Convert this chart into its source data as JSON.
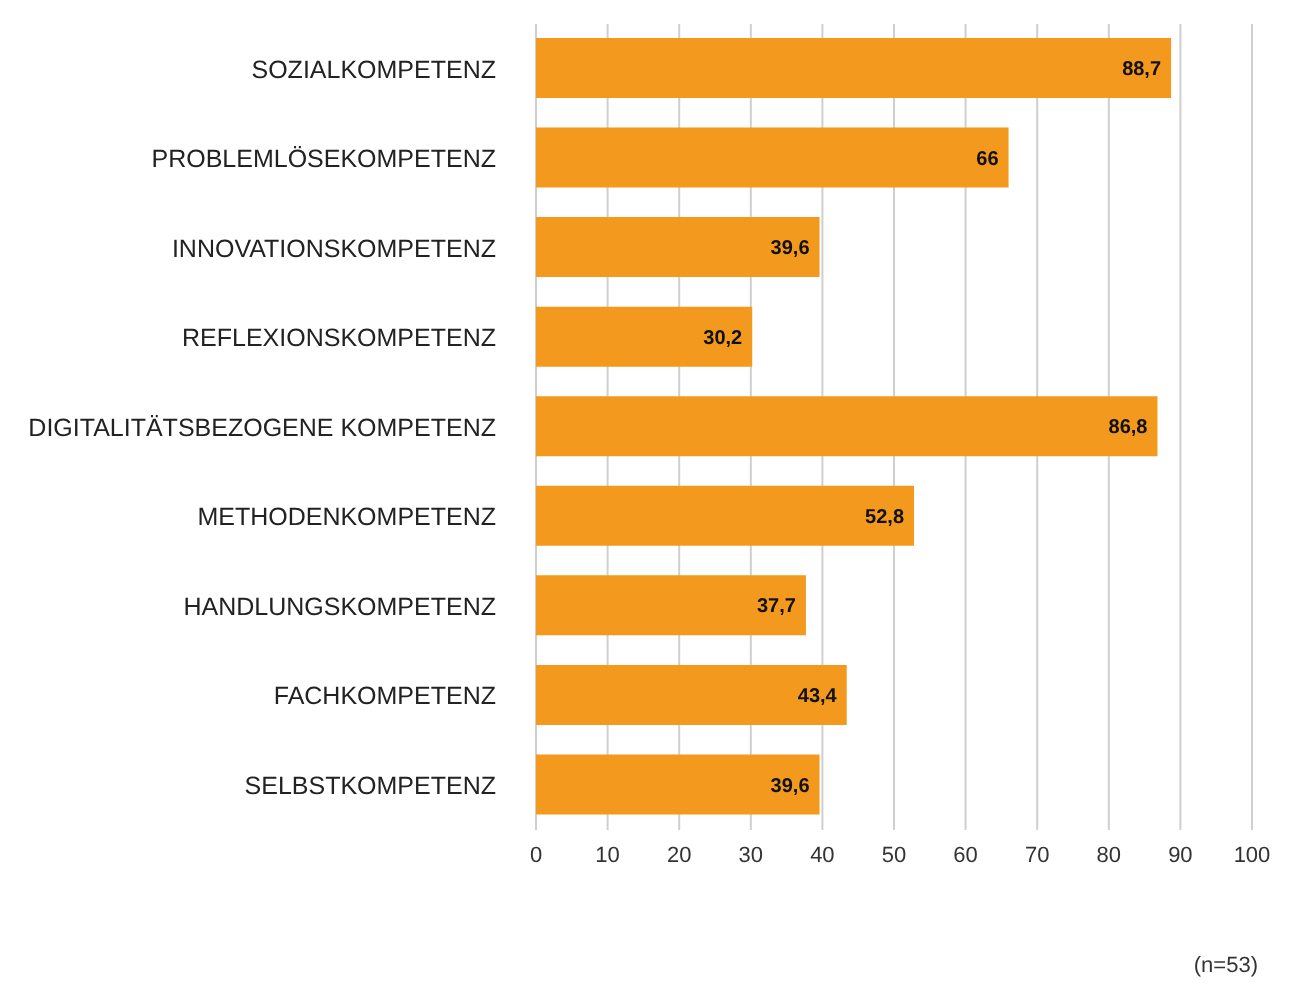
{
  "chart_data": {
    "type": "bar",
    "orientation": "horizontal",
    "categories": [
      "SOZIALKOMPETENZ",
      "PROBLEMLÖSEKOMPETENZ",
      "INNOVATIONSKOMPETENZ",
      "REFLEXIONSKOMPETENZ",
      "DIGITALITÄTSBEZOGENE KOMPETENZ",
      "METHODENKOMPETENZ",
      "HANDLUNGSKOMPETENZ",
      "FACHKOMPETENZ",
      "SELBSTKOMPETENZ"
    ],
    "values": [
      88.7,
      66,
      39.6,
      30.2,
      86.8,
      52.8,
      37.7,
      43.4,
      39.6
    ],
    "value_labels": [
      "88,7",
      "66",
      "39,6",
      "30,2",
      "86,8",
      "52,8",
      "37,7",
      "43,4",
      "39,6"
    ],
    "color": "#f39a1e",
    "xlim": [
      0,
      100
    ],
    "xticks": [
      0,
      10,
      20,
      30,
      40,
      50,
      60,
      70,
      80,
      90,
      100
    ],
    "grid": "x",
    "annotations": [
      "(n=53)"
    ]
  }
}
